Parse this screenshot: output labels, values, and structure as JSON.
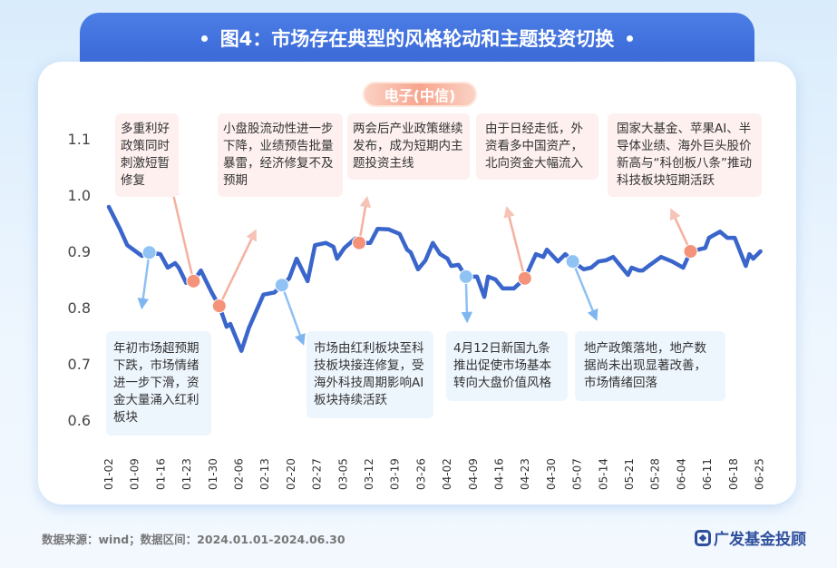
{
  "header": {
    "title": "图4：市场存在典型的风格轮动和主题投资切换"
  },
  "chart_data": {
    "type": "line",
    "title": "电子(中信)",
    "ylim": [
      0.6,
      1.1
    ],
    "y_ticks": [
      "1.1",
      "1.0",
      "0.9",
      "0.8",
      "0.7",
      "0.6"
    ],
    "x_ticks": [
      "01-02",
      "01-09",
      "01-16",
      "01-23",
      "01-30",
      "02-06",
      "02-13",
      "02-20",
      "02-27",
      "03-05",
      "03-12",
      "03-19",
      "03-26",
      "04-02",
      "04-09",
      "04-16",
      "04-23",
      "04-30",
      "05-07",
      "05-14",
      "05-21",
      "05-28",
      "06-04",
      "06-11",
      "06-18",
      "06-25"
    ],
    "grid": false,
    "line_color": "#3a66cc",
    "series": [
      {
        "points": [
          [
            "01-02",
            0.979
          ],
          [
            "01-05",
            0.94
          ],
          [
            "01-07",
            0.911
          ],
          [
            "01-11",
            0.892
          ],
          [
            "01-13",
            0.898
          ],
          [
            "01-16",
            0.895
          ],
          [
            "01-18",
            0.871
          ],
          [
            "01-20",
            0.879
          ],
          [
            "01-21",
            0.871
          ],
          [
            "01-23",
            0.844
          ],
          [
            "01-25",
            0.847
          ],
          [
            "01-27",
            0.866
          ],
          [
            "01-30",
            0.826
          ],
          [
            "02-01",
            0.803
          ],
          [
            "02-03",
            0.766
          ],
          [
            "02-04",
            0.771
          ],
          [
            "02-07",
            0.723
          ],
          [
            "02-09",
            0.763
          ],
          [
            "02-13",
            0.823
          ],
          [
            "02-16",
            0.827
          ],
          [
            "02-20",
            0.852
          ],
          [
            "02-22",
            0.887
          ],
          [
            "02-25",
            0.847
          ],
          [
            "02-27",
            0.911
          ],
          [
            "03-01",
            0.915
          ],
          [
            "03-03",
            0.908
          ],
          [
            "03-04",
            0.887
          ],
          [
            "03-06",
            0.906
          ],
          [
            "03-09",
            0.923
          ],
          [
            "03-10",
            0.915
          ],
          [
            "03-13",
            0.915
          ],
          [
            "03-15",
            0.94
          ],
          [
            "03-18",
            0.939
          ],
          [
            "03-21",
            0.931
          ],
          [
            "03-23",
            0.903
          ],
          [
            "03-24",
            0.898
          ],
          [
            "03-26",
            0.868
          ],
          [
            "03-28",
            0.884
          ],
          [
            "03-30",
            0.915
          ],
          [
            "04-01",
            0.895
          ],
          [
            "04-03",
            0.887
          ],
          [
            "04-04",
            0.874
          ],
          [
            "04-06",
            0.876
          ],
          [
            "04-08",
            0.855
          ],
          [
            "04-11",
            0.855
          ],
          [
            "04-13",
            0.819
          ],
          [
            "04-14",
            0.855
          ],
          [
            "04-16",
            0.85
          ],
          [
            "04-18",
            0.834
          ],
          [
            "04-21",
            0.834
          ],
          [
            "04-24",
            0.852
          ],
          [
            "04-27",
            0.895
          ],
          [
            "04-29",
            0.89
          ],
          [
            "04-30",
            0.903
          ],
          [
            "05-03",
            0.882
          ],
          [
            "05-05",
            0.895
          ],
          [
            "05-07",
            0.882
          ],
          [
            "05-10",
            0.868
          ],
          [
            "05-12",
            0.871
          ],
          [
            "05-14",
            0.882
          ],
          [
            "05-16",
            0.884
          ],
          [
            "05-18",
            0.89
          ],
          [
            "05-22",
            0.858
          ],
          [
            "05-23",
            0.871
          ],
          [
            "05-25",
            0.866
          ],
          [
            "05-26",
            0.866
          ],
          [
            "05-28",
            0.876
          ],
          [
            "05-31",
            0.89
          ],
          [
            "06-03",
            0.882
          ],
          [
            "06-06",
            0.871
          ],
          [
            "06-08",
            0.9
          ],
          [
            "06-12",
            0.906
          ],
          [
            "06-13",
            0.924
          ],
          [
            "06-16",
            0.935
          ],
          [
            "06-18",
            0.924
          ],
          [
            "06-20",
            0.924
          ],
          [
            "06-23",
            0.874
          ],
          [
            "06-24",
            0.895
          ],
          [
            "06-25",
            0.887
          ],
          [
            "06-27",
            0.9
          ]
        ]
      }
    ],
    "markers": [
      {
        "date": "01-13",
        "value": 0.898,
        "kind": "down",
        "color": "#8fc3f5"
      },
      {
        "date": "01-25",
        "value": 0.847,
        "kind": "up",
        "color": "#f4937a"
      },
      {
        "date": "02-01",
        "value": 0.803,
        "kind": "up",
        "color": "#f4937a"
      },
      {
        "date": "02-18",
        "value": 0.84,
        "kind": "down",
        "color": "#8fc3f5"
      },
      {
        "date": "03-10",
        "value": 0.915,
        "kind": "up",
        "color": "#f4937a"
      },
      {
        "date": "04-08",
        "value": 0.855,
        "kind": "down",
        "color": "#8fc3f5"
      },
      {
        "date": "04-24",
        "value": 0.852,
        "kind": "up",
        "color": "#f4937a"
      },
      {
        "date": "05-07",
        "value": 0.882,
        "kind": "down",
        "color": "#8fc3f5"
      },
      {
        "date": "06-08",
        "value": 0.9,
        "kind": "up",
        "color": "#f4937a"
      }
    ],
    "annotations_top": [
      "多重利好政策同时刺激短暂修复",
      "小盘股流动性进一步下降，业绩预告批量暴雷，经济修复不及预期",
      "两会后产业政策继续发布，成为短期内主题投资主线",
      "由于日经走低，外资看多中国资产，北向资金大幅流入",
      "国家大基金、苹果AI、半导体业绩、海外巨头股价新高与“科创板八条”推动科技板块短期活跃"
    ],
    "annotations_bottom": [
      "年初市场超预期下跌，市场情绪进一步下滑，资金大量涌入红利板块",
      "市场由红利板块至科技板块接连修复，受海外科技周期影响AI板块持续活跃",
      "4月12日新国九条推出促使市场基本转向大盘价值风格",
      "地产政策落地，地产数据尚未出现显著改善，市场情绪回落"
    ]
  },
  "footer": {
    "source": "数据来源：wind；数据区间：2024.01.01-2024.06.30",
    "brand": "广发基金投顾"
  }
}
